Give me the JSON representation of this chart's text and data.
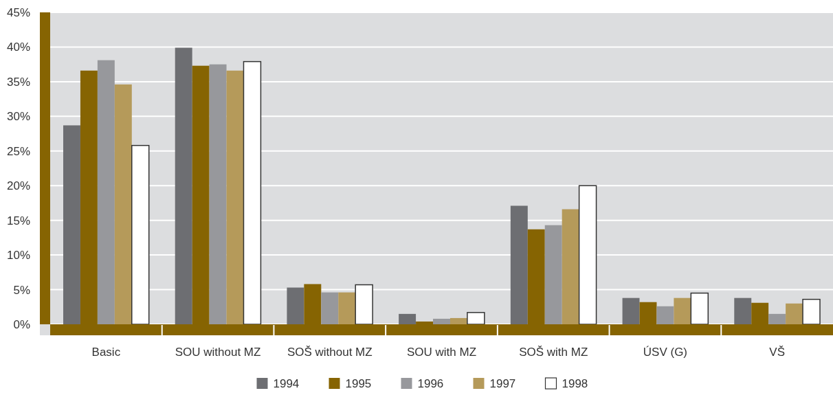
{
  "chart_data": {
    "type": "bar",
    "categories": [
      "Basic",
      "SOU without MZ",
      "SOŠ without MZ",
      "SOU with MZ",
      "SOŠ with MZ",
      "ÚSV (G)",
      "VŠ"
    ],
    "series": [
      {
        "name": "1994",
        "color": "#6d6e72",
        "values": [
          28.7,
          39.9,
          5.3,
          1.5,
          17.1,
          3.8,
          3.8
        ]
      },
      {
        "name": "1995",
        "color": "#866402",
        "values": [
          36.6,
          37.3,
          5.8,
          0.4,
          13.7,
          3.2,
          3.1
        ]
      },
      {
        "name": "1996",
        "color": "#97989c",
        "values": [
          38.1,
          37.5,
          4.6,
          0.8,
          14.3,
          2.6,
          1.5
        ]
      },
      {
        "name": "1997",
        "color": "#b59a5a",
        "values": [
          34.6,
          36.6,
          4.6,
          0.9,
          16.6,
          3.8,
          3.0
        ]
      },
      {
        "name": "1998",
        "color": "#ffffff",
        "values": [
          25.8,
          37.9,
          5.7,
          1.7,
          20.0,
          4.5,
          3.6
        ]
      }
    ],
    "ylim": [
      0,
      45
    ],
    "yticks": [
      {
        "value": 0,
        "label": "0%"
      },
      {
        "value": 5,
        "label": "5%"
      },
      {
        "value": 10,
        "label": "10%"
      },
      {
        "value": 15,
        "label": "15%"
      },
      {
        "value": 20,
        "label": "20%"
      },
      {
        "value": 25,
        "label": "25%"
      },
      {
        "value": 30,
        "label": "30%"
      },
      {
        "value": 35,
        "label": "35%"
      },
      {
        "value": 40,
        "label": "40%"
      },
      {
        "value": 45,
        "label": "45%"
      }
    ],
    "grid": "y",
    "legend": "bottom"
  }
}
